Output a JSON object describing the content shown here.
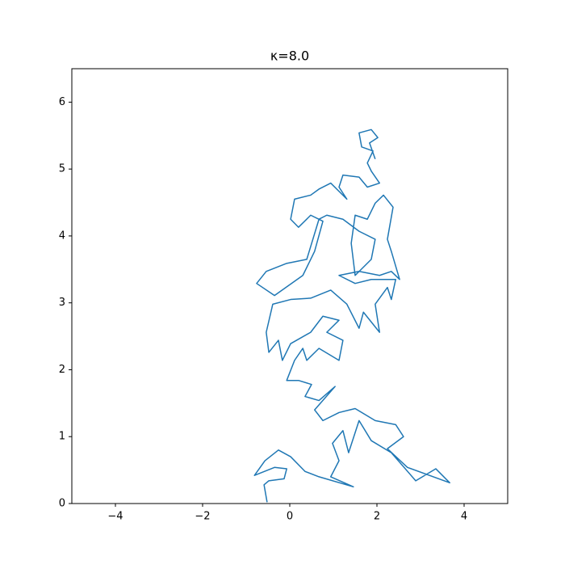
{
  "chart_data": {
    "type": "line",
    "title": "κ=8.0",
    "color": "#1f77b4",
    "grid": false,
    "xlim": [
      -5,
      5
    ],
    "ylim": [
      0,
      6.5
    ],
    "xticks": [
      {
        "value": -4,
        "label": "−4"
      },
      {
        "value": -2,
        "label": "−2"
      },
      0,
      2,
      4
    ],
    "yticks": [
      0,
      1,
      2,
      3,
      4,
      5,
      6
    ],
    "x": [
      -0.52,
      -0.59,
      -0.48,
      -0.13,
      -0.07,
      -0.35,
      -0.81,
      -0.57,
      -0.26,
      0.02,
      0.35,
      0.67,
      1.46,
      0.94,
      1.13,
      0.98,
      1.22,
      1.35,
      1.59,
      1.87,
      2.33,
      2.89,
      3.35,
      3.67,
      2.7,
      2.24,
      2.61,
      2.43,
      1.96,
      1.5,
      1.13,
      0.76,
      0.57,
      1.04,
      0.67,
      0.35,
      0.5,
      0.2,
      -0.07,
      0.11,
      0.3,
      0.39,
      0.67,
      1.13,
      1.22,
      0.85,
      1.13,
      0.76,
      0.48,
      0.02,
      -0.17,
      -0.26,
      -0.48,
      -0.54,
      -0.39,
      0.02,
      0.48,
      0.94,
      1.31,
      1.59,
      1.69,
      2.06,
      1.96,
      2.24,
      2.33,
      2.43,
      1.87,
      1.5,
      1.13,
      1.59,
      2.06,
      2.33,
      2.52,
      2.33,
      2.24,
      2.37,
      2.15,
      1.96,
      1.78,
      1.5,
      1.41,
      1.5,
      1.87,
      1.96,
      1.59,
      1.22,
      0.85,
      0.67,
      0.39,
      -0.07,
      -0.54,
      -0.76,
      -0.35,
      0.3,
      0.57,
      0.76,
      0.48,
      0.2,
      0.02,
      0.11,
      0.48,
      0.67,
      0.94,
      1.31,
      1.13,
      1.22,
      1.59,
      1.78,
      2.06,
      1.87,
      1.78,
      1.91,
      1.65,
      1.59,
      1.87,
      2.02,
      1.83,
      1.96
    ],
    "series": [
      {
        "values": [
          0.02,
          0.28,
          0.34,
          0.37,
          0.52,
          0.54,
          0.42,
          0.64,
          0.8,
          0.7,
          0.48,
          0.4,
          0.25,
          0.4,
          0.64,
          0.9,
          1.09,
          0.76,
          1.24,
          0.94,
          0.76,
          0.34,
          0.52,
          0.31,
          0.54,
          0.82,
          1.0,
          1.18,
          1.24,
          1.42,
          1.36,
          1.24,
          1.4,
          1.75,
          1.54,
          1.6,
          1.78,
          1.84,
          1.84,
          2.14,
          2.32,
          2.14,
          2.32,
          2.14,
          2.44,
          2.56,
          2.74,
          2.8,
          2.56,
          2.39,
          2.14,
          2.44,
          2.26,
          2.56,
          2.98,
          3.05,
          3.07,
          3.19,
          2.98,
          2.62,
          2.86,
          2.56,
          2.98,
          3.23,
          3.05,
          3.35,
          3.35,
          3.29,
          3.41,
          3.47,
          3.41,
          3.47,
          3.35,
          3.77,
          3.95,
          4.43,
          4.61,
          4.49,
          4.25,
          4.31,
          3.89,
          3.41,
          3.65,
          3.95,
          4.07,
          4.25,
          4.31,
          4.25,
          3.65,
          3.59,
          3.47,
          3.29,
          3.11,
          3.41,
          3.77,
          4.22,
          4.31,
          4.13,
          4.25,
          4.55,
          4.61,
          4.7,
          4.79,
          4.55,
          4.73,
          4.91,
          4.88,
          4.73,
          4.79,
          4.97,
          5.09,
          5.27,
          5.33,
          5.54,
          5.59,
          5.47,
          5.39,
          5.15
        ]
      }
    ]
  }
}
